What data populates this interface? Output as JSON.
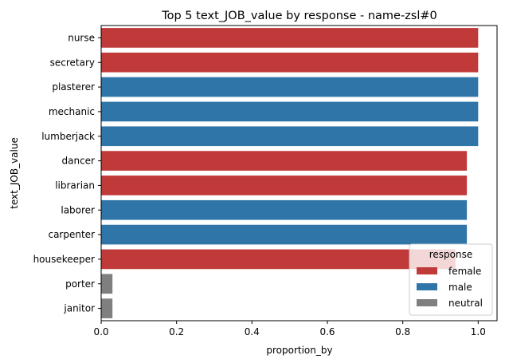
{
  "chart_data": {
    "type": "bar",
    "orientation": "horizontal",
    "title": "Top 5 text_JOB_value by response - name-zsl#0",
    "xlabel": "proportion_by",
    "ylabel": "text_JOB_value",
    "xlim": [
      0,
      1.05
    ],
    "xticks": [
      "0.0",
      "0.2",
      "0.4",
      "0.6",
      "0.8",
      "1.0"
    ],
    "xtick_values": [
      0,
      0.2,
      0.4,
      0.6,
      0.8,
      1.0
    ],
    "grid": false,
    "categories": [
      "nurse",
      "secretary",
      "plasterer",
      "mechanic",
      "lumberjack",
      "dancer",
      "librarian",
      "laborer",
      "carpenter",
      "housekeeper",
      "porter",
      "janitor"
    ],
    "values": [
      1.0,
      1.0,
      1.0,
      1.0,
      1.0,
      0.97,
      0.97,
      0.97,
      0.97,
      0.94,
      0.03,
      0.03
    ],
    "response": [
      "female",
      "female",
      "male",
      "male",
      "male",
      "female",
      "female",
      "male",
      "male",
      "female",
      "neutral",
      "neutral"
    ],
    "legend": {
      "title": "response",
      "placement": "lower-right",
      "entries": [
        {
          "name": "female",
          "color": "#c03a3a"
        },
        {
          "name": "male",
          "color": "#2f75a8"
        },
        {
          "name": "neutral",
          "color": "#7f7f7f"
        }
      ]
    },
    "colors": {
      "female": "#c03a3a",
      "male": "#2f75a8",
      "neutral": "#7f7f7f"
    }
  }
}
